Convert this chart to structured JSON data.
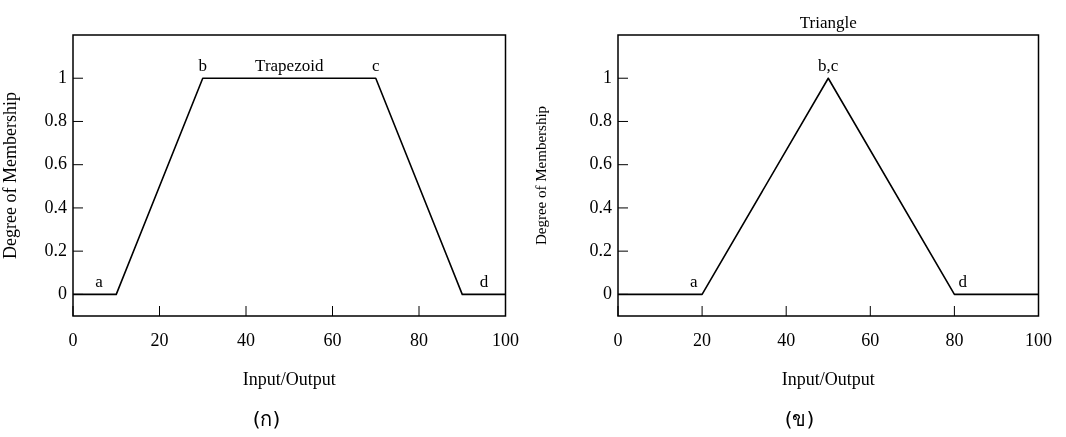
{
  "chart_data": [
    {
      "type": "line",
      "xlabel": "Input/Output",
      "ylabel": "Degree of Membership",
      "x": [
        0,
        10,
        30,
        70,
        90,
        100
      ],
      "values": [
        0,
        0,
        1,
        1,
        0,
        0
      ],
      "color": "#000000",
      "marker": "none",
      "xlim": [
        0,
        100
      ],
      "ylim": [
        -0.1,
        1.2
      ],
      "xticks": [
        0,
        20,
        40,
        60,
        80,
        100
      ],
      "yticks": [
        0,
        0.2,
        0.4,
        0.6,
        0.8,
        1
      ],
      "annotations": [
        {
          "text": "a",
          "x": 6,
          "y": 0
        },
        {
          "text": "b",
          "x": 30,
          "y": 1
        },
        {
          "text": "Trapezoid",
          "x": 50,
          "y": 1
        },
        {
          "text": "c",
          "x": 70,
          "y": 1
        },
        {
          "text": "d",
          "x": 95,
          "y": 0
        },
        "(ก)"
      ]
    },
    {
      "type": "line",
      "title": "Triangle",
      "xlabel": "Input/Output",
      "ylabel": "Degree of Membership",
      "x": [
        0,
        20,
        50,
        80,
        100
      ],
      "values": [
        0,
        0,
        1,
        0,
        0
      ],
      "color": "#000000",
      "marker": "none",
      "xlim": [
        0,
        100
      ],
      "ylim": [
        -0.1,
        1.2
      ],
      "xticks": [
        0,
        20,
        40,
        60,
        80,
        100
      ],
      "yticks": [
        0,
        0.2,
        0.4,
        0.6,
        0.8,
        1
      ],
      "annotations": [
        {
          "text": "a",
          "x": 18,
          "y": 0
        },
        {
          "text": "b,c",
          "x": 50,
          "y": 1
        },
        {
          "text": "d",
          "x": 82,
          "y": 0
        },
        "(ข)"
      ]
    }
  ]
}
